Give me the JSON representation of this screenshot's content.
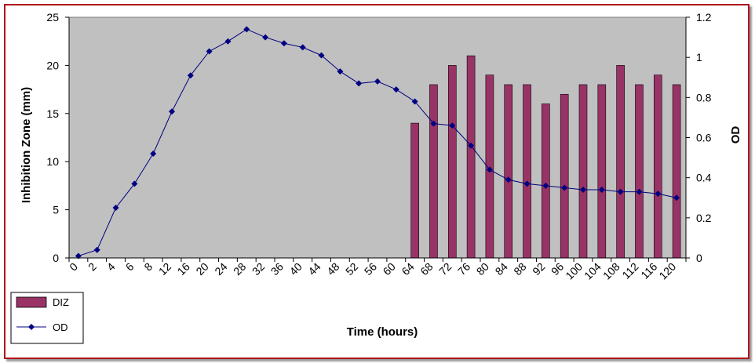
{
  "chart_data": {
    "type": "bar",
    "xlabel": "Time (hours)",
    "ylabel": "Inhibition Zone (mm)",
    "y2label": "OD",
    "ylim": [
      0,
      25
    ],
    "y2lim": [
      0,
      1.2
    ],
    "yticks": [
      "0",
      "5",
      "10",
      "15",
      "20",
      "25"
    ],
    "y2ticks": [
      "0",
      "0.2",
      "0.4",
      "0.6",
      "0.8",
      "1",
      "1.2"
    ],
    "categories": [
      "0",
      "2",
      "4",
      "6",
      "8",
      "12",
      "16",
      "20",
      "24",
      "28",
      "32",
      "36",
      "40",
      "44",
      "48",
      "52",
      "56",
      "60",
      "64",
      "68",
      "72",
      "76",
      "80",
      "84",
      "88",
      "92",
      "96",
      "100",
      "104",
      "108",
      "112",
      "116",
      "120"
    ],
    "legend_position": "bottom-left",
    "grid": false,
    "background": "#c0c0c0",
    "series": [
      {
        "name": "DIZ",
        "type": "bar",
        "axis": "left",
        "color": "#993366",
        "values": [
          null,
          null,
          null,
          null,
          null,
          null,
          null,
          null,
          null,
          null,
          null,
          null,
          null,
          null,
          null,
          null,
          null,
          null,
          14,
          18,
          20,
          21,
          19,
          18,
          18,
          16,
          17,
          18,
          18,
          20,
          18,
          19,
          18
        ]
      },
      {
        "name": "OD",
        "type": "line",
        "axis": "right",
        "color": "#000080",
        "values": [
          0.01,
          0.04,
          0.25,
          0.37,
          0.52,
          0.73,
          0.91,
          1.03,
          1.08,
          1.14,
          1.1,
          1.07,
          1.05,
          1.01,
          0.93,
          0.87,
          0.88,
          0.84,
          0.78,
          0.67,
          0.66,
          0.56,
          0.44,
          0.39,
          0.37,
          0.36,
          0.35,
          0.34,
          0.34,
          0.33,
          0.33,
          0.32,
          0.3
        ]
      }
    ]
  }
}
